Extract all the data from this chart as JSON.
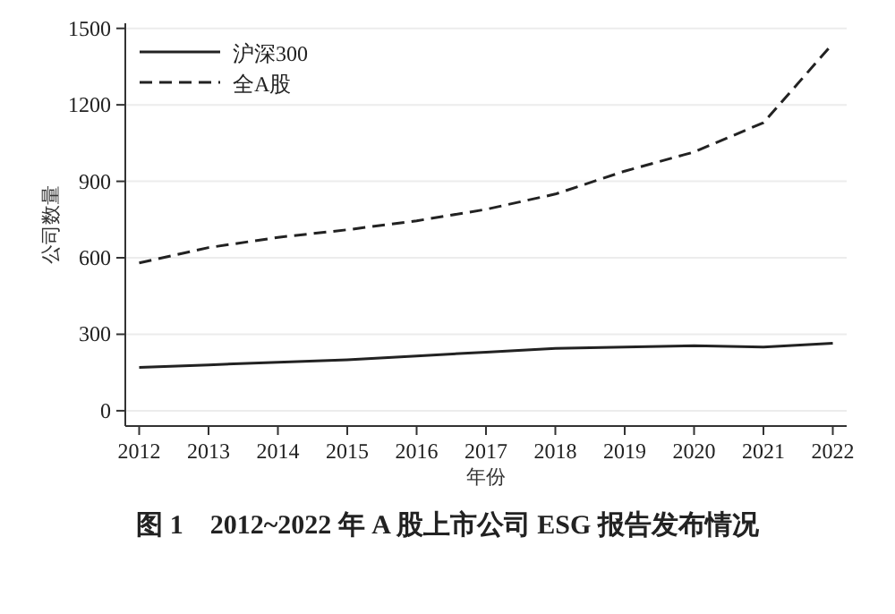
{
  "chart_data": {
    "type": "line",
    "title": "图 1　2012~2022 年 A 股上市公司 ESG 报告发布情况",
    "xlabel": "年份",
    "ylabel": "公司数量",
    "x": [
      2012,
      2013,
      2014,
      2015,
      2016,
      2017,
      2018,
      2019,
      2020,
      2021,
      2022
    ],
    "series": [
      {
        "name": "沪深300",
        "color": "#222222",
        "line_style": "solid",
        "values": [
          170,
          180,
          190,
          200,
          215,
          230,
          245,
          250,
          255,
          250,
          265
        ]
      },
      {
        "name": "全A股",
        "color": "#222222",
        "line_style": "dashed",
        "values": [
          580,
          640,
          680,
          710,
          745,
          790,
          850,
          940,
          1015,
          1130,
          1440
        ]
      }
    ],
    "xlim": [
      2011.8,
      2022.2
    ],
    "xticks": [
      2012,
      2013,
      2014,
      2015,
      2016,
      2017,
      2018,
      2019,
      2020,
      2021,
      2022
    ],
    "ylim": [
      -60,
      1520
    ],
    "yticks": [
      0,
      300,
      600,
      900,
      1200,
      1500
    ],
    "grid": "y",
    "legend": "top left",
    "marker": "none"
  }
}
